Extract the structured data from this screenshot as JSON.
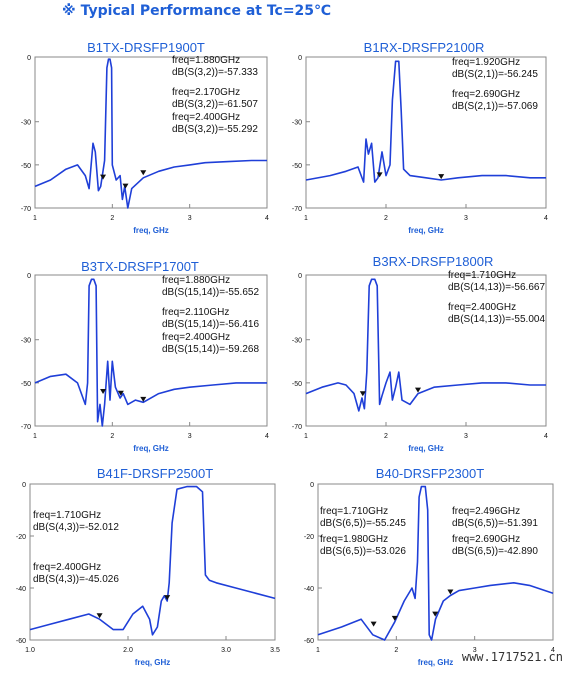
{
  "header": {
    "mark": "※",
    "title": "Typical Performance at Tc=25℃"
  },
  "watermark": "www.1717521.cn",
  "chart_data": [
    {
      "type": "line",
      "title": "B1TX-DRSFP1900T",
      "xlabel": "freq, GHz",
      "ylabel": "",
      "xlim": [
        1,
        4
      ],
      "ylim": [
        -70,
        0
      ],
      "xticks": [
        "1",
        "2",
        "3",
        "4"
      ],
      "yticks": [
        "0",
        "-30",
        "-50",
        "-70"
      ],
      "grid": false,
      "series": [
        {
          "values": [
            [
              1.0,
              -60
            ],
            [
              1.2,
              -57
            ],
            [
              1.4,
              -52
            ],
            [
              1.55,
              -50
            ],
            [
              1.65,
              -55
            ],
            [
              1.7,
              -61
            ],
            [
              1.75,
              -40
            ],
            [
              1.78,
              -44
            ],
            [
              1.82,
              -62
            ],
            [
              1.85,
              -60
            ],
            [
              1.9,
              -48
            ],
            [
              1.93,
              -5
            ],
            [
              1.95,
              -1
            ],
            [
              1.97,
              -1
            ],
            [
              1.99,
              -5
            ],
            [
              2.0,
              -50
            ],
            [
              2.05,
              -57
            ],
            [
              2.1,
              -55
            ],
            [
              2.13,
              -66
            ],
            [
              2.16,
              -60
            ],
            [
              2.2,
              -70
            ],
            [
              2.25,
              -61
            ],
            [
              2.4,
              -56
            ],
            [
              2.6,
              -53
            ],
            [
              2.8,
              -51
            ],
            [
              3.0,
              -50
            ],
            [
              3.2,
              -49
            ],
            [
              3.5,
              -48.5
            ],
            [
              3.8,
              -48
            ],
            [
              4.0,
              -48
            ]
          ]
        }
      ],
      "markers": [
        {
          "x": 1.88,
          "y": -57.333,
          "lines": [
            "freq=1.880GHz",
            "dB(S(3,2))=-57.333"
          ]
        },
        {
          "x": 2.17,
          "y": -61.507,
          "lines": [
            "freq=2.170GHz",
            "dB(S(3,2))=-61.507"
          ]
        },
        {
          "x": 2.4,
          "y": -55.292,
          "lines": [
            "freq=2.400GHz",
            "dB(S(3,2))=-55.292"
          ]
        }
      ]
    },
    {
      "type": "line",
      "title": "B1RX-DRSFP2100R",
      "xlabel": "freq, GHz",
      "ylabel": "",
      "xlim": [
        1,
        4
      ],
      "ylim": [
        -70,
        0
      ],
      "xticks": [
        "1",
        "2",
        "3",
        "4"
      ],
      "yticks": [
        "0",
        "-30",
        "-50",
        "-70"
      ],
      "grid": false,
      "series": [
        {
          "values": [
            [
              1.0,
              -57
            ],
            [
              1.3,
              -55
            ],
            [
              1.5,
              -53
            ],
            [
              1.65,
              -51
            ],
            [
              1.72,
              -58
            ],
            [
              1.75,
              -38
            ],
            [
              1.78,
              -45
            ],
            [
              1.82,
              -40
            ],
            [
              1.86,
              -58
            ],
            [
              1.9,
              -56
            ],
            [
              1.95,
              -44
            ],
            [
              2.0,
              -55
            ],
            [
              2.05,
              -50
            ],
            [
              2.08,
              -20
            ],
            [
              2.12,
              -2
            ],
            [
              2.16,
              -2
            ],
            [
              2.19,
              -25
            ],
            [
              2.22,
              -52
            ],
            [
              2.3,
              -55
            ],
            [
              2.5,
              -56
            ],
            [
              2.69,
              -57
            ],
            [
              2.9,
              -56
            ],
            [
              3.2,
              -55
            ],
            [
              3.5,
              -55
            ],
            [
              3.8,
              -56
            ],
            [
              4.0,
              -56
            ]
          ]
        }
      ],
      "markers": [
        {
          "x": 1.92,
          "y": -56.245,
          "lines": [
            "freq=1.920GHz",
            "dB(S(2,1))=-56.245"
          ]
        },
        {
          "x": 2.69,
          "y": -57.069,
          "lines": [
            "freq=2.690GHz",
            "dB(S(2,1))=-57.069"
          ]
        }
      ]
    },
    {
      "type": "line",
      "title": "B3TX-DRSFP1700T",
      "xlabel": "freq, GHz",
      "ylabel": "",
      "xlim": [
        1,
        4
      ],
      "ylim": [
        -70,
        0
      ],
      "xticks": [
        "1",
        "2",
        "3",
        "4"
      ],
      "yticks": [
        "0",
        "-30",
        "-50",
        "-70"
      ],
      "grid": false,
      "series": [
        {
          "values": [
            [
              1.0,
              -50
            ],
            [
              1.2,
              -47
            ],
            [
              1.4,
              -46
            ],
            [
              1.55,
              -50
            ],
            [
              1.65,
              -60
            ],
            [
              1.68,
              -50
            ],
            [
              1.7,
              -5
            ],
            [
              1.73,
              -2
            ],
            [
              1.76,
              -2
            ],
            [
              1.79,
              -5
            ],
            [
              1.81,
              -68
            ],
            [
              1.84,
              -60
            ],
            [
              1.87,
              -70
            ],
            [
              1.9,
              -60
            ],
            [
              1.94,
              -40
            ],
            [
              1.97,
              -58
            ],
            [
              2.0,
              -40
            ],
            [
              2.04,
              -52
            ],
            [
              2.1,
              -57
            ],
            [
              2.14,
              -55
            ],
            [
              2.2,
              -60
            ],
            [
              2.3,
              -58
            ],
            [
              2.4,
              -59
            ],
            [
              2.6,
              -55
            ],
            [
              2.8,
              -53
            ],
            [
              3.0,
              -52
            ],
            [
              3.3,
              -51
            ],
            [
              3.6,
              -50
            ],
            [
              4.0,
              -50
            ]
          ]
        }
      ],
      "markers": [
        {
          "x": 1.88,
          "y": -55.652,
          "lines": [
            "freq=1.880GHz",
            "dB(S(15,14))=-55.652"
          ]
        },
        {
          "x": 2.11,
          "y": -56.416,
          "lines": [
            "freq=2.110GHz",
            "dB(S(15,14))=-56.416"
          ]
        },
        {
          "x": 2.4,
          "y": -59.268,
          "lines": [
            "freq=2.400GHz",
            "dB(S(15,14))=-59.268"
          ]
        }
      ]
    },
    {
      "type": "line",
      "title": "B3RX-DRSFP1800R",
      "xlabel": "freq, GHz",
      "ylabel": "",
      "xlim": [
        1,
        4
      ],
      "ylim": [
        -70,
        0
      ],
      "xticks": [
        "1",
        "2",
        "3",
        "4"
      ],
      "yticks": [
        "0",
        "-30",
        "-50",
        "-70"
      ],
      "grid": false,
      "series": [
        {
          "values": [
            [
              1.0,
              -55
            ],
            [
              1.2,
              -52
            ],
            [
              1.4,
              -50
            ],
            [
              1.5,
              -51
            ],
            [
              1.6,
              -55
            ],
            [
              1.66,
              -63
            ],
            [
              1.7,
              -57
            ],
            [
              1.73,
              -62
            ],
            [
              1.76,
              -45
            ],
            [
              1.79,
              -5
            ],
            [
              1.82,
              -2
            ],
            [
              1.86,
              -2
            ],
            [
              1.89,
              -5
            ],
            [
              1.92,
              -60
            ],
            [
              1.95,
              -56
            ],
            [
              2.0,
              -50
            ],
            [
              2.05,
              -45
            ],
            [
              2.08,
              -58
            ],
            [
              2.12,
              -52
            ],
            [
              2.16,
              -45
            ],
            [
              2.2,
              -58
            ],
            [
              2.3,
              -60
            ],
            [
              2.4,
              -55
            ],
            [
              2.6,
              -52
            ],
            [
              2.9,
              -51
            ],
            [
              3.2,
              -50
            ],
            [
              3.5,
              -50
            ],
            [
              3.8,
              -51
            ],
            [
              4.0,
              -51
            ]
          ]
        }
      ],
      "markers": [
        {
          "x": 1.71,
          "y": -56.667,
          "lines": [
            "freq=1.710GHz",
            "dB(S(14,13))=-56.667"
          ]
        },
        {
          "x": 2.4,
          "y": -55.004,
          "lines": [
            "freq=2.400GHz",
            "dB(S(14,13))=-55.004"
          ]
        }
      ]
    },
    {
      "type": "line",
      "title": "B41F-DRSFP2500T",
      "xlabel": "freq, GHz",
      "ylabel": "",
      "xlim": [
        1,
        3.5
      ],
      "ylim": [
        -60,
        0
      ],
      "xticks": [
        "1.0",
        "2.0",
        "3.0",
        "3.5"
      ],
      "yticks": [
        "0",
        "-20",
        "-40",
        "-60"
      ],
      "grid": false,
      "series": [
        {
          "values": [
            [
              1.0,
              -56
            ],
            [
              1.2,
              -54
            ],
            [
              1.4,
              -52
            ],
            [
              1.6,
              -50
            ],
            [
              1.71,
              -52
            ],
            [
              1.85,
              -56
            ],
            [
              1.95,
              -56
            ],
            [
              2.05,
              -50
            ],
            [
              2.15,
              -47
            ],
            [
              2.22,
              -52
            ],
            [
              2.25,
              -58
            ],
            [
              2.3,
              -55
            ],
            [
              2.34,
              -45
            ],
            [
              2.37,
              -43
            ],
            [
              2.4,
              -45
            ],
            [
              2.42,
              -38
            ],
            [
              2.45,
              -15
            ],
            [
              2.5,
              -2
            ],
            [
              2.6,
              -1
            ],
            [
              2.7,
              -1
            ],
            [
              2.76,
              -3
            ],
            [
              2.79,
              -35
            ],
            [
              2.83,
              -37
            ],
            [
              2.9,
              -38
            ],
            [
              3.1,
              -40
            ],
            [
              3.3,
              -42
            ],
            [
              3.5,
              -44
            ]
          ]
        }
      ],
      "markers": [
        {
          "x": 1.71,
          "y": -52.012,
          "lines": [
            "freq=1.710GHz",
            "dB(S(4,3))=-52.012"
          ]
        },
        {
          "x": 2.4,
          "y": -45.026,
          "lines": [
            "freq=2.400GHz",
            "dB(S(4,3))=-45.026"
          ]
        }
      ]
    },
    {
      "type": "line",
      "title": "B40-DRSFP2300T",
      "xlabel": "freq, GHz",
      "ylabel": "",
      "xlim": [
        1,
        4
      ],
      "ylim": [
        -60,
        0
      ],
      "xticks": [
        "1",
        "2",
        "3",
        "4"
      ],
      "yticks": [
        "0",
        "-20",
        "-40",
        "-60"
      ],
      "grid": false,
      "series": [
        {
          "values": [
            [
              1.0,
              -58
            ],
            [
              1.3,
              -55
            ],
            [
              1.55,
              -52
            ],
            [
              1.7,
              -58
            ],
            [
              1.85,
              -60
            ],
            [
              1.98,
              -53
            ],
            [
              2.1,
              -45
            ],
            [
              2.2,
              -40
            ],
            [
              2.24,
              -44
            ],
            [
              2.27,
              -30
            ],
            [
              2.29,
              -5
            ],
            [
              2.32,
              -1
            ],
            [
              2.37,
              -1
            ],
            [
              2.4,
              -10
            ],
            [
              2.42,
              -58
            ],
            [
              2.45,
              -60
            ],
            [
              2.5,
              -52
            ],
            [
              2.6,
              -45
            ],
            [
              2.69,
              -42.9
            ],
            [
              2.8,
              -41
            ],
            [
              3.0,
              -40
            ],
            [
              3.2,
              -39
            ],
            [
              3.5,
              -38
            ],
            [
              3.7,
              -39
            ],
            [
              4.0,
              -42
            ]
          ]
        }
      ],
      "markers": [
        {
          "x": 1.71,
          "y": -55.245,
          "lines": [
            "freq=1.710GHz",
            "dB(S(6,5))=-55.245"
          ]
        },
        {
          "x": 1.98,
          "y": -53.026,
          "lines": [
            "freq=1.980GHz",
            "dB(S(6,5))=-53.026"
          ]
        },
        {
          "x": 2.496,
          "y": -51.391,
          "lines": [
            "freq=2.496GHz",
            "dB(S(6,5))=-51.391"
          ]
        },
        {
          "x": 2.69,
          "y": -42.89,
          "lines": [
            "freq=2.690GHz",
            "dB(S(6,5))=-42.890"
          ]
        }
      ]
    }
  ]
}
